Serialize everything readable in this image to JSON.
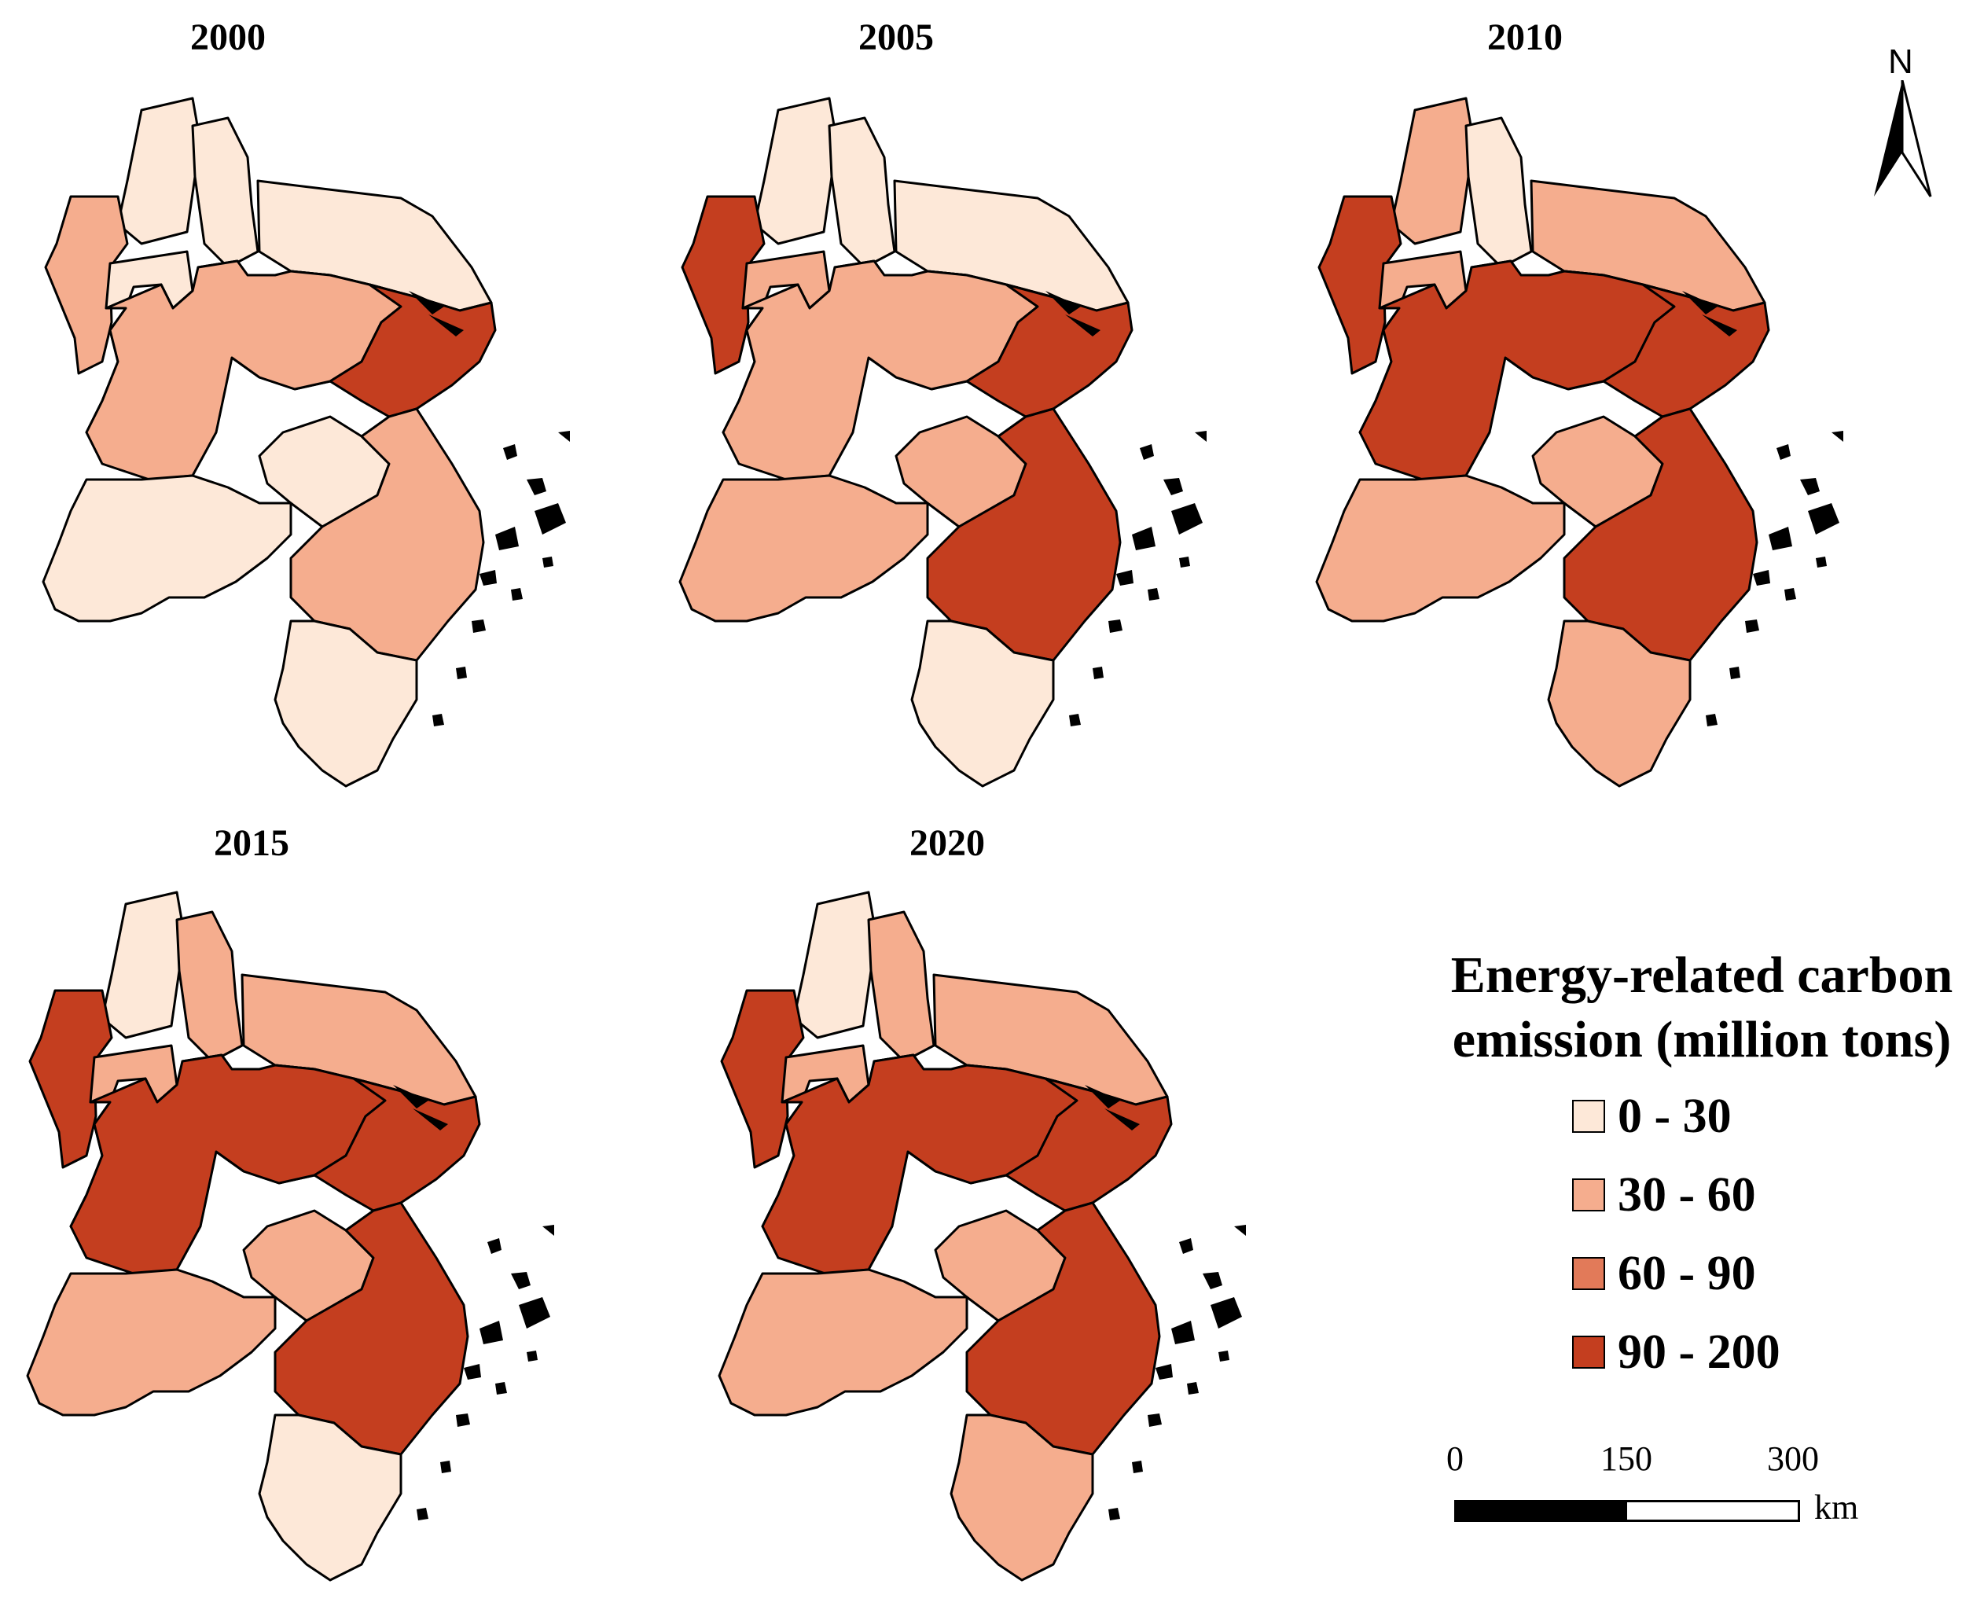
{
  "panels": [
    {
      "year": "2000",
      "classes": [
        "c0",
        "c0",
        "c0",
        "c1",
        "c0",
        "c0",
        "c0",
        "c2",
        "c0",
        "c0",
        "c1",
        "c3",
        "c0",
        "c0",
        "c1",
        "c0"
      ]
    },
    {
      "year": "2005",
      "classes": [
        "c0",
        "c0",
        "c0",
        "c3",
        "c1",
        "c0",
        "c1",
        "c2",
        "c0",
        "c0",
        "c1",
        "c3",
        "c1",
        "c1",
        "c3",
        "c0"
      ]
    },
    {
      "year": "2010",
      "classes": [
        "c1",
        "c0",
        "c1",
        "c3",
        "c1",
        "c1",
        "c1",
        "c3",
        "c2",
        "c0",
        "c3",
        "c3",
        "c1",
        "c1",
        "c3",
        "c1"
      ]
    },
    {
      "year": "2015",
      "classes": [
        "c0",
        "c1",
        "c1",
        "c3",
        "c1",
        "c1",
        "c2",
        "c3",
        "c2",
        "c0",
        "c3",
        "c3",
        "c1",
        "c1",
        "c3",
        "c0"
      ]
    },
    {
      "year": "2020",
      "classes": [
        "c0",
        "c1",
        "c1",
        "c3",
        "c1",
        "c1",
        "c2",
        "c3",
        "c2",
        "c0",
        "c3",
        "c3",
        "c1",
        "c1",
        "c3",
        "c1"
      ]
    }
  ],
  "legend": {
    "title": "Energy-related carbon emission (million tons)",
    "items": [
      {
        "label": "0 - 30",
        "color": "#fde8d8"
      },
      {
        "label": "30 - 60",
        "color": "#f5ad8e"
      },
      {
        "label": "60 - 90",
        "color": "#e27a59"
      },
      {
        "label": "90 - 200",
        "color": "#c43e1f"
      }
    ]
  },
  "north_arrow": {
    "label": "N"
  },
  "scale_bar": {
    "ticks": [
      "0",
      "150",
      "300"
    ],
    "unit": "km"
  }
}
